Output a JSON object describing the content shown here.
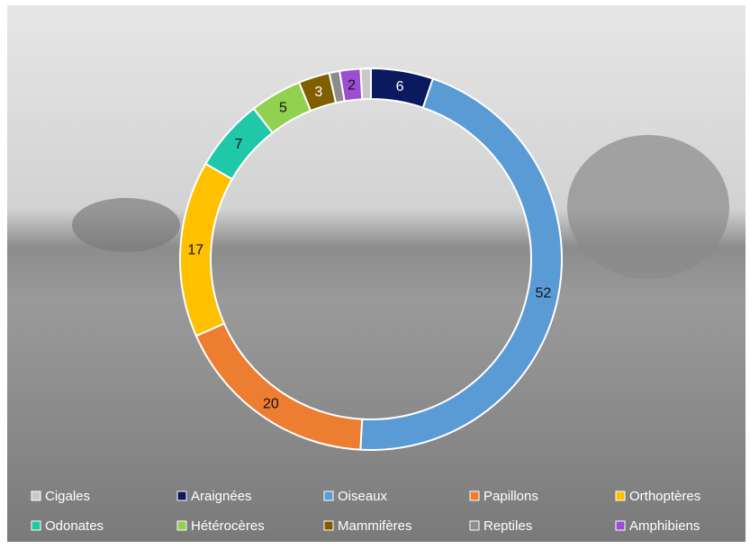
{
  "chart_data": {
    "type": "donut",
    "categories": [
      "Cigales",
      "Araignées",
      "Oiseaux",
      "Papillons",
      "Orthoptères",
      "Odonates",
      "Hétérocères",
      "Mammifères",
      "Reptiles",
      "Amphibiens"
    ],
    "values": [
      1,
      6,
      52,
      20,
      17,
      7,
      5,
      3,
      1,
      2
    ],
    "colors": [
      "#c9c9c9",
      "#0b1a5e",
      "#5b9bd5",
      "#ed7d31",
      "#ffc000",
      "#1ec8a8",
      "#92d050",
      "#7f5f00",
      "#8c8c8c",
      "#9b4fd0"
    ],
    "legend": "bottom"
  }
}
